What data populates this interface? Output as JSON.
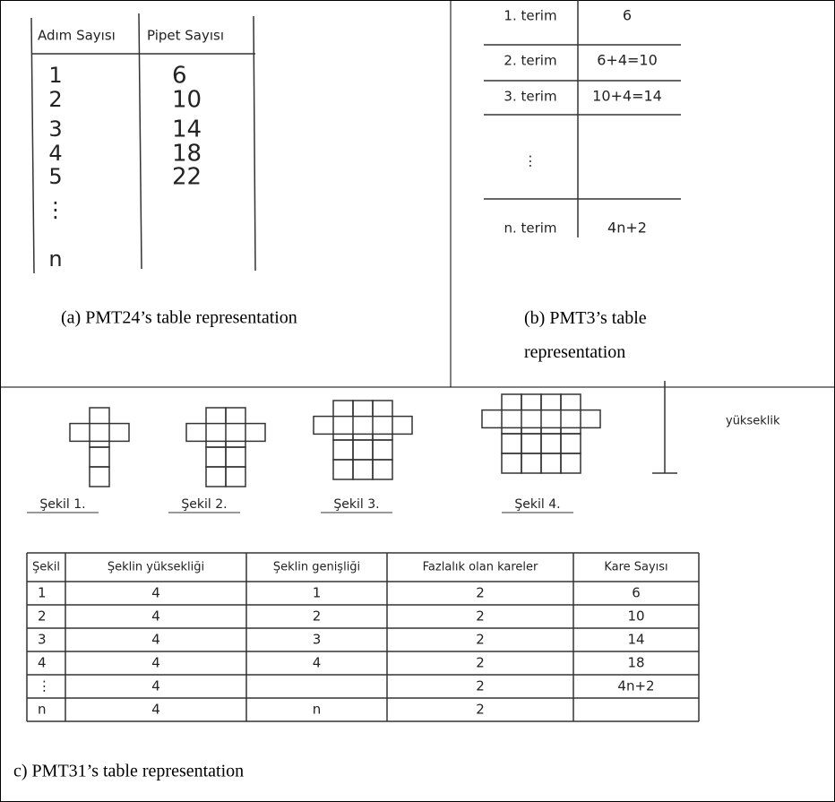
{
  "panel_a": {
    "header": [
      "Adım Sayısı",
      "Pipet Sayısı"
    ],
    "steps": [
      "1",
      "2",
      "3",
      "4",
      "5",
      "⋮",
      "n"
    ],
    "pipes": [
      "6",
      "10",
      "14",
      "18",
      "22"
    ],
    "caption": "(a)  PMT24’s table representation"
  },
  "panel_b": {
    "rows": [
      {
        "term": "1. terim",
        "value": "6"
      },
      {
        "term": "2. terim",
        "value": "6+4=10"
      },
      {
        "term": "3. terim",
        "value": "10+4=14"
      },
      {
        "term": "⋮"
      },
      {
        "term": "n. terim",
        "value": "4n+2"
      }
    ],
    "caption": "(b)  PMT3’s table representation"
  },
  "panel_c": {
    "figures": [
      "Şekil 1.",
      "Şekil 2.",
      "Şekil 3.",
      "Şekil 4."
    ],
    "annotation": "yükseklik",
    "header": [
      "Şekil",
      "Şeklin yüksekliği",
      "Şeklin genişliği",
      "Fazlalık olan kareler",
      "Kare Sayısı"
    ],
    "rows": [
      {
        "shape": "1",
        "height": "4",
        "width": "1",
        "extra": "2",
        "count": "6"
      },
      {
        "shape": "2",
        "height": "4",
        "width": "2",
        "extra": "2",
        "count": "10"
      },
      {
        "shape": "3",
        "height": "4",
        "width": "3",
        "extra": "2",
        "count": "14"
      },
      {
        "shape": "4",
        "height": "4",
        "width": "4",
        "extra": "2",
        "count": "18"
      },
      {
        "shape": "⋮",
        "height": "4",
        "extra": "2",
        "count": "4n+2"
      },
      {
        "shape": "n",
        "height": "4",
        "width": "n",
        "extra": "2"
      }
    ],
    "caption": "c) PMT31’s table representation"
  }
}
